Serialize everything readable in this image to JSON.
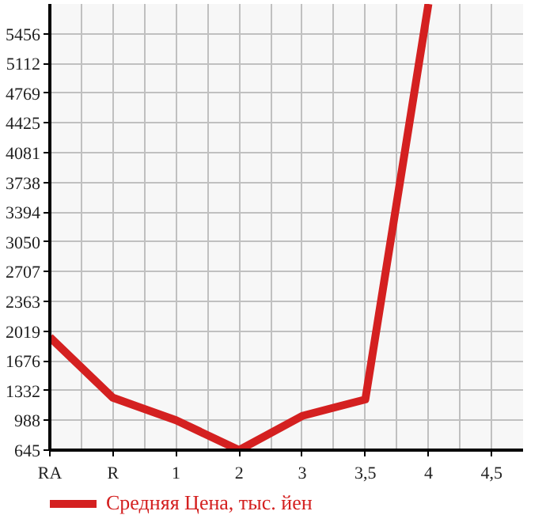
{
  "chart_data": {
    "type": "line",
    "categories": [
      "RA",
      "R",
      "1",
      "2",
      "3",
      "3,5",
      "4",
      "4,5"
    ],
    "series": [
      {
        "name": "Средняя Цена, тыс. йен",
        "color": "#d42020",
        "values": [
          1950,
          1250,
          990,
          645,
          1040,
          1230,
          5800,
          null
        ]
      }
    ],
    "ylim": [
      645,
      5800
    ],
    "yticks": [
      645,
      988,
      1332,
      1676,
      2019,
      2363,
      2707,
      3050,
      3394,
      3738,
      4081,
      4425,
      4769,
      5112,
      5456
    ],
    "grid": true,
    "legend": "bottom",
    "marker": "none",
    "line_style": "solid"
  }
}
